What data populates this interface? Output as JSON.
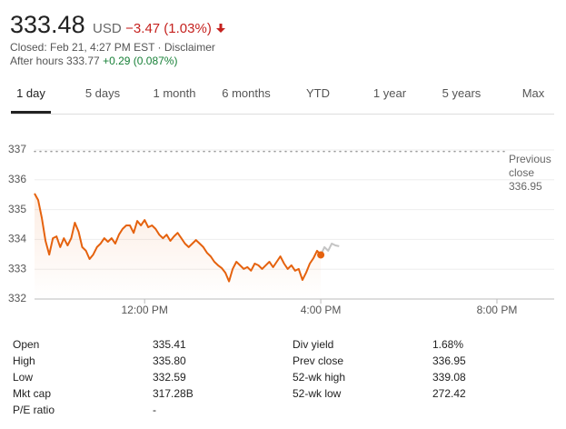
{
  "header": {
    "price": "333.48",
    "currency": "USD",
    "change": "−3.47 (1.03%)",
    "closed": "Closed: Feb 21, 4:27 PM EST · Disclaimer",
    "after_hours": "After hours 333.77",
    "after_hours_change": "+0.29 (0.087%)"
  },
  "tabs": [
    "1 day",
    "5 days",
    "1 month",
    "6 months",
    "YTD",
    "1 year",
    "5 years",
    "Max"
  ],
  "selected_tab": 0,
  "chart_data": {
    "type": "line",
    "xlim": [
      570,
      1278
    ],
    "xticks": [
      {
        "value": 720,
        "label": "12:00 PM"
      },
      {
        "value": 960,
        "label": "4:00 PM"
      },
      {
        "value": 1200,
        "label": "8:00 PM"
      }
    ],
    "ylim": [
      332,
      337
    ],
    "yticks": [
      332,
      333,
      334,
      335,
      336,
      337
    ],
    "grid": true,
    "previous_close": {
      "label": "Previous close",
      "value": 336.95
    },
    "series": [
      {
        "color": "#e5620e",
        "x": [
          570,
          575,
          580,
          585,
          590,
          595,
          600,
          605,
          610,
          615,
          620,
          625,
          630,
          635,
          640,
          645,
          650,
          655,
          660,
          665,
          670,
          675,
          680,
          685,
          690,
          695,
          700,
          705,
          710,
          715,
          720,
          725,
          730,
          735,
          740,
          745,
          750,
          755,
          760,
          765,
          770,
          775,
          780,
          785,
          790,
          795,
          800,
          805,
          810,
          815,
          820,
          825,
          830,
          835,
          840,
          845,
          850,
          855,
          860,
          865,
          870,
          875,
          880,
          885,
          890,
          895,
          900,
          905,
          910,
          915,
          920,
          925,
          930,
          935,
          940,
          945,
          950,
          955,
          960
        ],
        "values": [
          335.54,
          335.32,
          334.71,
          333.95,
          333.49,
          334.04,
          334.1,
          333.74,
          334.04,
          333.8,
          334.04,
          334.56,
          334.26,
          333.74,
          333.62,
          333.34,
          333.49,
          333.74,
          333.86,
          334.04,
          333.92,
          334.04,
          333.86,
          334.16,
          334.35,
          334.47,
          334.47,
          334.22,
          334.62,
          334.47,
          334.65,
          334.41,
          334.47,
          334.35,
          334.16,
          334.04,
          334.16,
          333.95,
          334.1,
          334.22,
          334.04,
          333.86,
          333.74,
          333.86,
          333.98,
          333.86,
          333.74,
          333.55,
          333.43,
          333.25,
          333.13,
          333.04,
          332.88,
          332.59,
          333.01,
          333.25,
          333.13,
          333.01,
          333.07,
          332.95,
          333.19,
          333.13,
          333.01,
          333.13,
          333.25,
          333.07,
          333.25,
          333.43,
          333.19,
          333.01,
          333.13,
          332.95,
          333.01,
          332.64,
          332.88,
          333.19,
          333.37,
          333.62,
          333.48
        ]
      },
      {
        "color": "#c4c4c4",
        "x": [
          960,
          965,
          970,
          975,
          980,
          985
        ],
        "values": [
          333.48,
          333.74,
          333.62,
          333.86,
          333.8,
          333.77
        ]
      }
    ]
  },
  "stats": {
    "rows": [
      [
        "Open",
        "335.41",
        "Div yield",
        "1.68%"
      ],
      [
        "High",
        "335.80",
        "Prev close",
        "336.95"
      ],
      [
        "Low",
        "332.59",
        "52-wk high",
        "339.08"
      ],
      [
        "Mkt cap",
        "317.28B",
        "52-wk low",
        "272.42"
      ],
      [
        "P/E ratio",
        "-"
      ]
    ]
  }
}
